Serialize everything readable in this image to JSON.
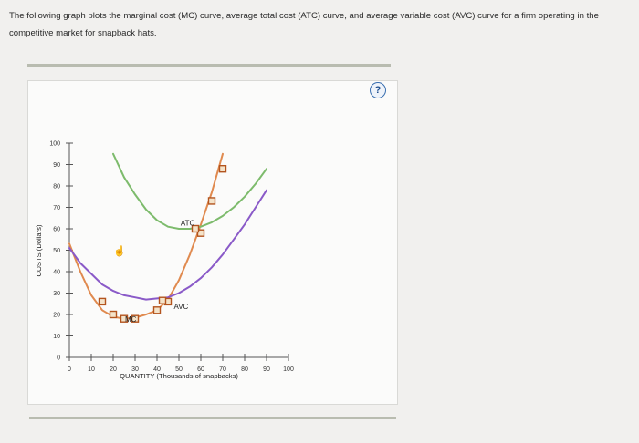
{
  "question": {
    "text": "The following graph plots the marginal cost (MC) curve, average total cost (ATC) curve, and average variable cost (AVC) curve for a firm operating in the competitive market for snapback hats."
  },
  "help_button": {
    "label": "?"
  },
  "chart_data": {
    "type": "line",
    "xlabel": "QUANTITY (Thousands of snapbacks)",
    "ylabel": "COSTS (Dollars)",
    "xlim": [
      0,
      100
    ],
    "ylim": [
      0,
      100
    ],
    "x_ticks": [
      "0",
      "10",
      "20",
      "30",
      "40",
      "50",
      "60",
      "70",
      "80",
      "90",
      "100"
    ],
    "y_ticks": [
      "0",
      "10",
      "20",
      "30",
      "40",
      "50",
      "60",
      "70",
      "80",
      "90",
      "100"
    ],
    "series": [
      {
        "name": "MC",
        "color": "#e08a4f",
        "points": [
          [
            0,
            53
          ],
          [
            5,
            40
          ],
          [
            10,
            29
          ],
          [
            15,
            22
          ],
          [
            20,
            19
          ],
          [
            25,
            18
          ],
          [
            30,
            18.5
          ],
          [
            35,
            20
          ],
          [
            40,
            22
          ],
          [
            45,
            27
          ],
          [
            50,
            36
          ],
          [
            55,
            48
          ],
          [
            60,
            62
          ],
          [
            65,
            77
          ],
          [
            70,
            95
          ]
        ],
        "markers": [
          [
            15,
            26
          ],
          [
            20,
            20
          ],
          [
            25,
            18
          ],
          [
            30,
            18
          ],
          [
            40,
            22
          ],
          [
            45,
            26
          ],
          [
            60,
            58
          ],
          [
            65,
            73
          ],
          [
            70,
            88
          ]
        ]
      },
      {
        "name": "ATC",
        "color": "#7dbb6c",
        "points": [
          [
            20,
            95
          ],
          [
            25,
            84
          ],
          [
            30,
            76
          ],
          [
            35,
            69
          ],
          [
            40,
            64
          ],
          [
            45,
            61
          ],
          [
            50,
            60
          ],
          [
            55,
            60
          ],
          [
            60,
            61
          ],
          [
            65,
            63
          ],
          [
            70,
            66
          ],
          [
            75,
            70
          ],
          [
            80,
            75
          ],
          [
            85,
            81
          ],
          [
            90,
            88
          ]
        ]
      },
      {
        "name": "AVC",
        "color": "#8a5ac8",
        "points": [
          [
            0,
            51
          ],
          [
            5,
            44
          ],
          [
            10,
            39
          ],
          [
            15,
            34
          ],
          [
            20,
            31
          ],
          [
            25,
            29
          ],
          [
            30,
            28
          ],
          [
            35,
            27
          ],
          [
            40,
            27.5
          ],
          [
            45,
            28
          ],
          [
            50,
            30
          ],
          [
            55,
            33
          ],
          [
            60,
            37
          ],
          [
            65,
            42
          ],
          [
            70,
            48
          ],
          [
            75,
            55
          ],
          [
            80,
            62
          ],
          [
            85,
            70
          ],
          [
            90,
            78
          ]
        ]
      }
    ],
    "annotations": [
      "MC",
      "ATC",
      "AVC"
    ]
  }
}
